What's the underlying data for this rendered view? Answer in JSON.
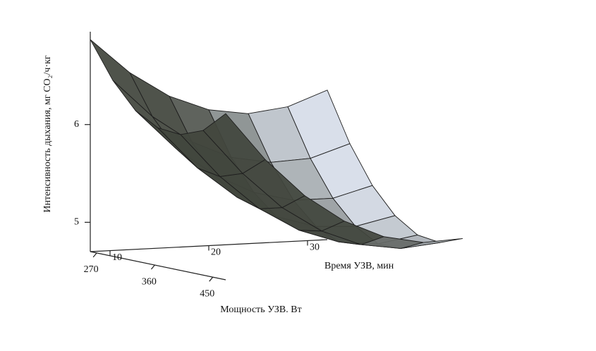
{
  "chart_data": {
    "type": "surface",
    "x_label": "Время УЗВ, мин",
    "y_label": "Мощность УЗВ. Вт",
    "z_label": "Интенсивность дыхания, мг CO₂/ч·кг",
    "x": [
      8,
      12,
      16,
      20,
      24,
      28,
      32
    ],
    "y": [
      260,
      295,
      330,
      365,
      400,
      435,
      470
    ],
    "z": [
      [
        6.87,
        6.51,
        6.25,
        6.09,
        6.03,
        6.08,
        6.23
      ],
      [
        6.5,
        6.11,
        5.83,
        5.65,
        5.58,
        5.6,
        5.73
      ],
      [
        6.24,
        5.84,
        5.54,
        5.34,
        5.24,
        5.24,
        5.35
      ],
      [
        6.11,
        5.68,
        5.36,
        5.14,
        5.02,
        5.0,
        5.09
      ],
      [
        6.09,
        5.64,
        5.29,
        5.05,
        4.91,
        4.87,
        4.94
      ],
      [
        6.18,
        5.72,
        5.35,
        5.09,
        4.93,
        4.87,
        4.91
      ],
      [
        6.4,
        5.91,
        5.52,
        5.24,
        5.06,
        4.98,
        5.0
      ]
    ],
    "xlim": [
      8,
      32
    ],
    "ylim": [
      260,
      470
    ],
    "zlim": [
      4.7,
      6.95
    ],
    "xticks": [
      10,
      20,
      30
    ],
    "yticks": [
      270,
      360,
      450
    ],
    "zticks": [
      5,
      6
    ]
  }
}
